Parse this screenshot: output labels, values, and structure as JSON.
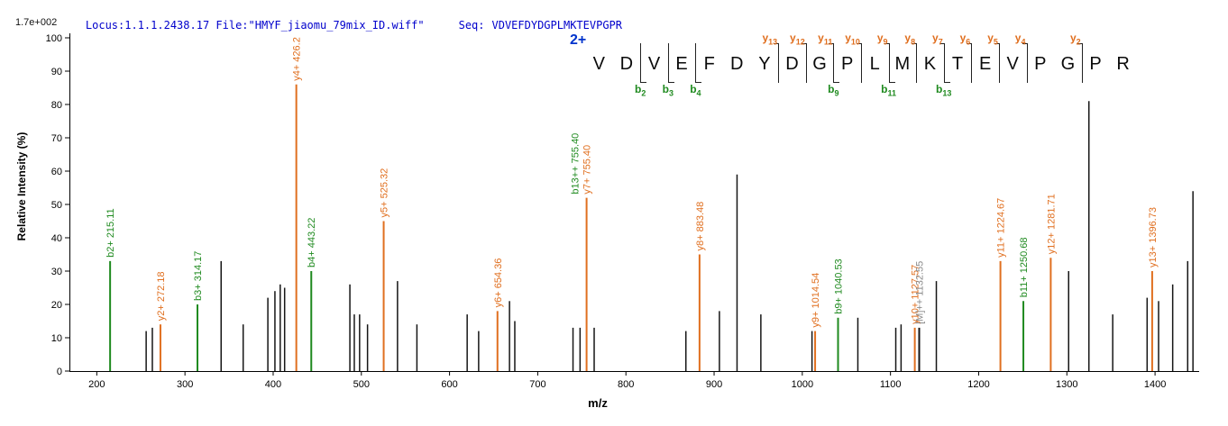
{
  "header": {
    "locus_file": "Locus:1.1.1.2438.17 File:\"HMYF_jiaomu_79mix_ID.wiff\"",
    "seq_label": "Seq:",
    "seq_value": "VDVEFDYDGPLMKTEVPGPR"
  },
  "colors": {
    "y_ion": "#e06f1f",
    "b_ion": "#1f8a1f",
    "precursor_label": "#8a8a8a",
    "peak_default": "#151515",
    "header_text": "#0000cc",
    "charge_text": "#0033cc",
    "axis": "#000000"
  },
  "peptide": {
    "charge": "2+",
    "residues": [
      "V",
      "D",
      "V",
      "E",
      "F",
      "D",
      "Y",
      "D",
      "G",
      "P",
      "L",
      "M",
      "K",
      "T",
      "E",
      "V",
      "P",
      "G",
      "P",
      "R"
    ],
    "cleavages": [
      {
        "after": 2,
        "b": "b2"
      },
      {
        "after": 3,
        "b": "b3"
      },
      {
        "after": 4,
        "b": "b4"
      },
      {
        "after": 7,
        "y": "y13"
      },
      {
        "after": 8,
        "y": "y12"
      },
      {
        "after": 9,
        "y": "y11",
        "b": "b9"
      },
      {
        "after": 10,
        "y": "y10"
      },
      {
        "after": 11,
        "y": "y9",
        "b": "b11"
      },
      {
        "after": 12,
        "y": "y8"
      },
      {
        "after": 13,
        "y": "y7",
        "b": "b13"
      },
      {
        "after": 14,
        "y": "y6"
      },
      {
        "after": 15,
        "y": "y5"
      },
      {
        "after": 16,
        "y": "y4"
      },
      {
        "after": 18,
        "y": "y2"
      }
    ]
  },
  "chart_data": {
    "type": "bar",
    "title": "",
    "xlabel": "m/z",
    "ylabel": "Relative  Intensity  (%)",
    "y_axis_scale_note": "1.7e+002",
    "x_range": [
      170,
      1450
    ],
    "y_range": [
      0,
      100
    ],
    "x_ticks": [
      200,
      300,
      400,
      500,
      600,
      700,
      800,
      900,
      1000,
      1100,
      1200,
      1300,
      1400
    ],
    "y_ticks": [
      0,
      10,
      20,
      30,
      40,
      50,
      60,
      70,
      80,
      90,
      100
    ],
    "grid": false,
    "legend": false,
    "peaks": [
      {
        "mz": 215.11,
        "intensity": 33,
        "series": "b",
        "label": "b2+ 215.11"
      },
      {
        "mz": 256,
        "intensity": 12,
        "series": "none"
      },
      {
        "mz": 263,
        "intensity": 13,
        "series": "none"
      },
      {
        "mz": 272.18,
        "intensity": 14,
        "series": "y",
        "label": "y2+ 272.18"
      },
      {
        "mz": 314.17,
        "intensity": 20,
        "series": "b",
        "label": "b3+ 314.17"
      },
      {
        "mz": 341,
        "intensity": 33,
        "series": "none"
      },
      {
        "mz": 366,
        "intensity": 14,
        "series": "none"
      },
      {
        "mz": 394,
        "intensity": 22,
        "series": "none"
      },
      {
        "mz": 402,
        "intensity": 24,
        "series": "none"
      },
      {
        "mz": 408,
        "intensity": 26,
        "series": "none"
      },
      {
        "mz": 413,
        "intensity": 25,
        "series": "none"
      },
      {
        "mz": 426.25,
        "intensity": 86,
        "series": "y",
        "label": "y4+ 426.2"
      },
      {
        "mz": 443.22,
        "intensity": 30,
        "series": "b",
        "label": "b4+ 443.22"
      },
      {
        "mz": 487,
        "intensity": 26,
        "series": "none"
      },
      {
        "mz": 492,
        "intensity": 17,
        "series": "none"
      },
      {
        "mz": 498,
        "intensity": 17,
        "series": "none"
      },
      {
        "mz": 507,
        "intensity": 14,
        "series": "none"
      },
      {
        "mz": 525.32,
        "intensity": 45,
        "series": "y",
        "label": "y5+ 525.32"
      },
      {
        "mz": 541,
        "intensity": 27,
        "series": "none"
      },
      {
        "mz": 563,
        "intensity": 14,
        "series": "none"
      },
      {
        "mz": 620,
        "intensity": 17,
        "series": "none"
      },
      {
        "mz": 633,
        "intensity": 12,
        "series": "none"
      },
      {
        "mz": 654.36,
        "intensity": 18,
        "series": "y",
        "label": "y6+ 654.36"
      },
      {
        "mz": 668,
        "intensity": 21,
        "series": "none"
      },
      {
        "mz": 674,
        "intensity": 15,
        "series": "none"
      },
      {
        "mz": 740,
        "intensity": 13,
        "series": "none"
      },
      {
        "mz": 748,
        "intensity": 13,
        "series": "none"
      },
      {
        "mz": 755.4,
        "intensity": 52,
        "series": "y",
        "label": "y7+ 755.40",
        "label2": "b13++ 755.40"
      },
      {
        "mz": 764,
        "intensity": 13,
        "series": "none"
      },
      {
        "mz": 868,
        "intensity": 12,
        "series": "none"
      },
      {
        "mz": 883.48,
        "intensity": 35,
        "series": "y",
        "label": "y8+ 883.48"
      },
      {
        "mz": 906,
        "intensity": 18,
        "series": "none"
      },
      {
        "mz": 926,
        "intensity": 59,
        "series": "none"
      },
      {
        "mz": 953,
        "intensity": 17,
        "series": "none"
      },
      {
        "mz": 1011,
        "intensity": 12,
        "series": "none"
      },
      {
        "mz": 1014.54,
        "intensity": 12,
        "series": "y",
        "label": "y9+ 1014.54"
      },
      {
        "mz": 1040.53,
        "intensity": 16,
        "series": "b",
        "label": "b9+ 1040.53"
      },
      {
        "mz": 1063,
        "intensity": 16,
        "series": "none"
      },
      {
        "mz": 1106,
        "intensity": 13,
        "series": "none"
      },
      {
        "mz": 1112,
        "intensity": 14,
        "series": "none"
      },
      {
        "mz": 1127.57,
        "intensity": 13,
        "series": "y",
        "label": "y10+ 1127.57"
      },
      {
        "mz": 1132.55,
        "intensity": 13,
        "series": "precursor",
        "label": "[M]++ 1132.55"
      },
      {
        "mz": 1152,
        "intensity": 27,
        "series": "none"
      },
      {
        "mz": 1224.67,
        "intensity": 33,
        "series": "y",
        "label": "y11+ 1224.67"
      },
      {
        "mz": 1250.68,
        "intensity": 21,
        "series": "b",
        "label": "b11+ 1250.68"
      },
      {
        "mz": 1281.71,
        "intensity": 34,
        "series": "y",
        "label": "y12+ 1281.71"
      },
      {
        "mz": 1302,
        "intensity": 30,
        "series": "none"
      },
      {
        "mz": 1325,
        "intensity": 81,
        "series": "none"
      },
      {
        "mz": 1352,
        "intensity": 17,
        "series": "none"
      },
      {
        "mz": 1391,
        "intensity": 22,
        "series": "none"
      },
      {
        "mz": 1396.73,
        "intensity": 30,
        "series": "y",
        "label": "y13+ 1396.73"
      },
      {
        "mz": 1404,
        "intensity": 21,
        "series": "none"
      },
      {
        "mz": 1420,
        "intensity": 26,
        "series": "none"
      },
      {
        "mz": 1437,
        "intensity": 33,
        "series": "none"
      },
      {
        "mz": 1443,
        "intensity": 54,
        "series": "none"
      }
    ]
  }
}
